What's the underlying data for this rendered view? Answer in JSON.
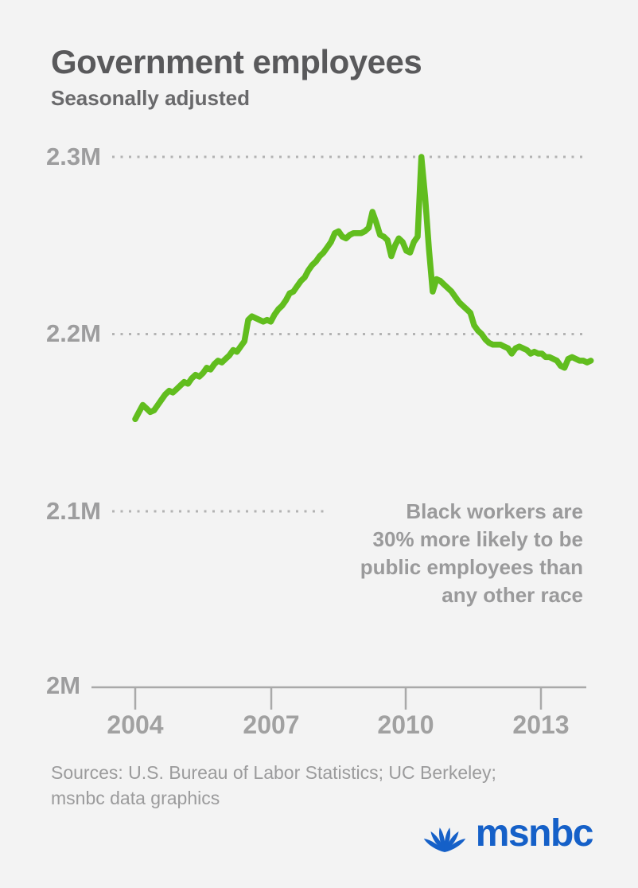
{
  "header": {
    "title": "Government employees",
    "subtitle": "Seasonally adjusted"
  },
  "chart_data": {
    "type": "line",
    "title": "Government employees",
    "subtitle": "Seasonally adjusted",
    "x_start_year": 2004,
    "x_interval": "monthly",
    "x_end": "early 2014",
    "ylim": [
      2.0,
      2.3
    ],
    "yunit": "millions of employees",
    "grid": "dotted horizontal gridlines at 2.1M, 2.2M, 2.3M; solid baseline axis at 2M",
    "ytick_labels": [
      "2.3M",
      "2.2M",
      "2.1M",
      "2M"
    ],
    "xtick_labels": [
      "2004",
      "2007",
      "2010",
      "2013"
    ],
    "line_color": "#61bd1e",
    "annotation": "Black workers are 30% more likely to be public employees than any other race",
    "series": [
      {
        "name": "Government employees, seasonally adjusted (millions)",
        "values": [
          2.152,
          2.156,
          2.16,
          2.158,
          2.156,
          2.157,
          2.16,
          2.163,
          2.166,
          2.168,
          2.167,
          2.169,
          2.171,
          2.173,
          2.172,
          2.175,
          2.177,
          2.176,
          2.178,
          2.181,
          2.18,
          2.183,
          2.185,
          2.184,
          2.186,
          2.188,
          2.191,
          2.19,
          2.193,
          2.196,
          2.208,
          2.21,
          2.209,
          2.208,
          2.207,
          2.208,
          2.207,
          2.211,
          2.214,
          2.216,
          2.219,
          2.223,
          2.224,
          2.227,
          2.23,
          2.232,
          2.236,
          2.239,
          2.241,
          2.244,
          2.246,
          2.249,
          2.252,
          2.257,
          2.258,
          2.255,
          2.254,
          2.256,
          2.257,
          2.257,
          2.257,
          2.258,
          2.26,
          2.269,
          2.263,
          2.256,
          2.255,
          2.253,
          2.244,
          2.25,
          2.254,
          2.252,
          2.247,
          2.246,
          2.252,
          2.255,
          2.3,
          2.277,
          2.248,
          2.224,
          2.231,
          2.23,
          2.228,
          2.226,
          2.224,
          2.221,
          2.218,
          2.216,
          2.214,
          2.212,
          2.205,
          2.202,
          2.2,
          2.197,
          2.195,
          2.194,
          2.194,
          2.194,
          2.193,
          2.192,
          2.189,
          2.192,
          2.193,
          2.192,
          2.191,
          2.189,
          2.19,
          2.189,
          2.189,
          2.187,
          2.187,
          2.186,
          2.185,
          2.182,
          2.181,
          2.186,
          2.187,
          2.186,
          2.185,
          2.185,
          2.184,
          2.185
        ]
      }
    ]
  },
  "annotation": {
    "lines": [
      "Black workers are",
      "30% more likely to be",
      "public employees than",
      "any other race"
    ]
  },
  "sources": {
    "lines": [
      "Sources: U.S. Bureau of Labor Statistics; UC Berkeley;",
      "msnbc data graphics"
    ]
  },
  "logo": {
    "brand": "msnbc",
    "brand_color": "#1560c8",
    "icon": "nbc-peacock-icon"
  }
}
